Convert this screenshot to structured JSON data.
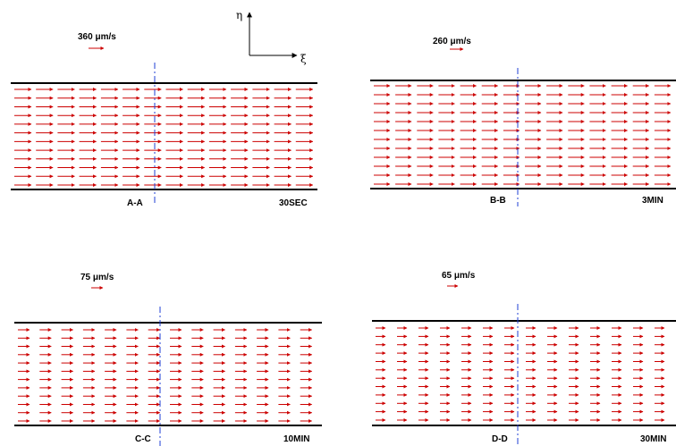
{
  "axes": {
    "eta_label": "η",
    "xi_label": "ξ"
  },
  "colors": {
    "vector": "#cc0000",
    "wall": "#000000",
    "section_line": "#1f3fd6"
  },
  "panels": [
    {
      "scale_text": "360 μm/s",
      "section_label": "A-A",
      "time_label": "30SEC",
      "rows": 12,
      "columns": 14
    },
    {
      "scale_text": "260 μm/s",
      "section_label": "B-B",
      "time_label": "3MIN",
      "rows": 12,
      "columns": 14
    },
    {
      "scale_text": "75  μm/s",
      "section_label": "C-C",
      "time_label": "10MIN",
      "rows": 12,
      "columns": 14
    },
    {
      "scale_text": "65 μm/s",
      "section_label": "D-D",
      "time_label": "30MIN",
      "rows": 12,
      "columns": 14
    }
  ]
}
